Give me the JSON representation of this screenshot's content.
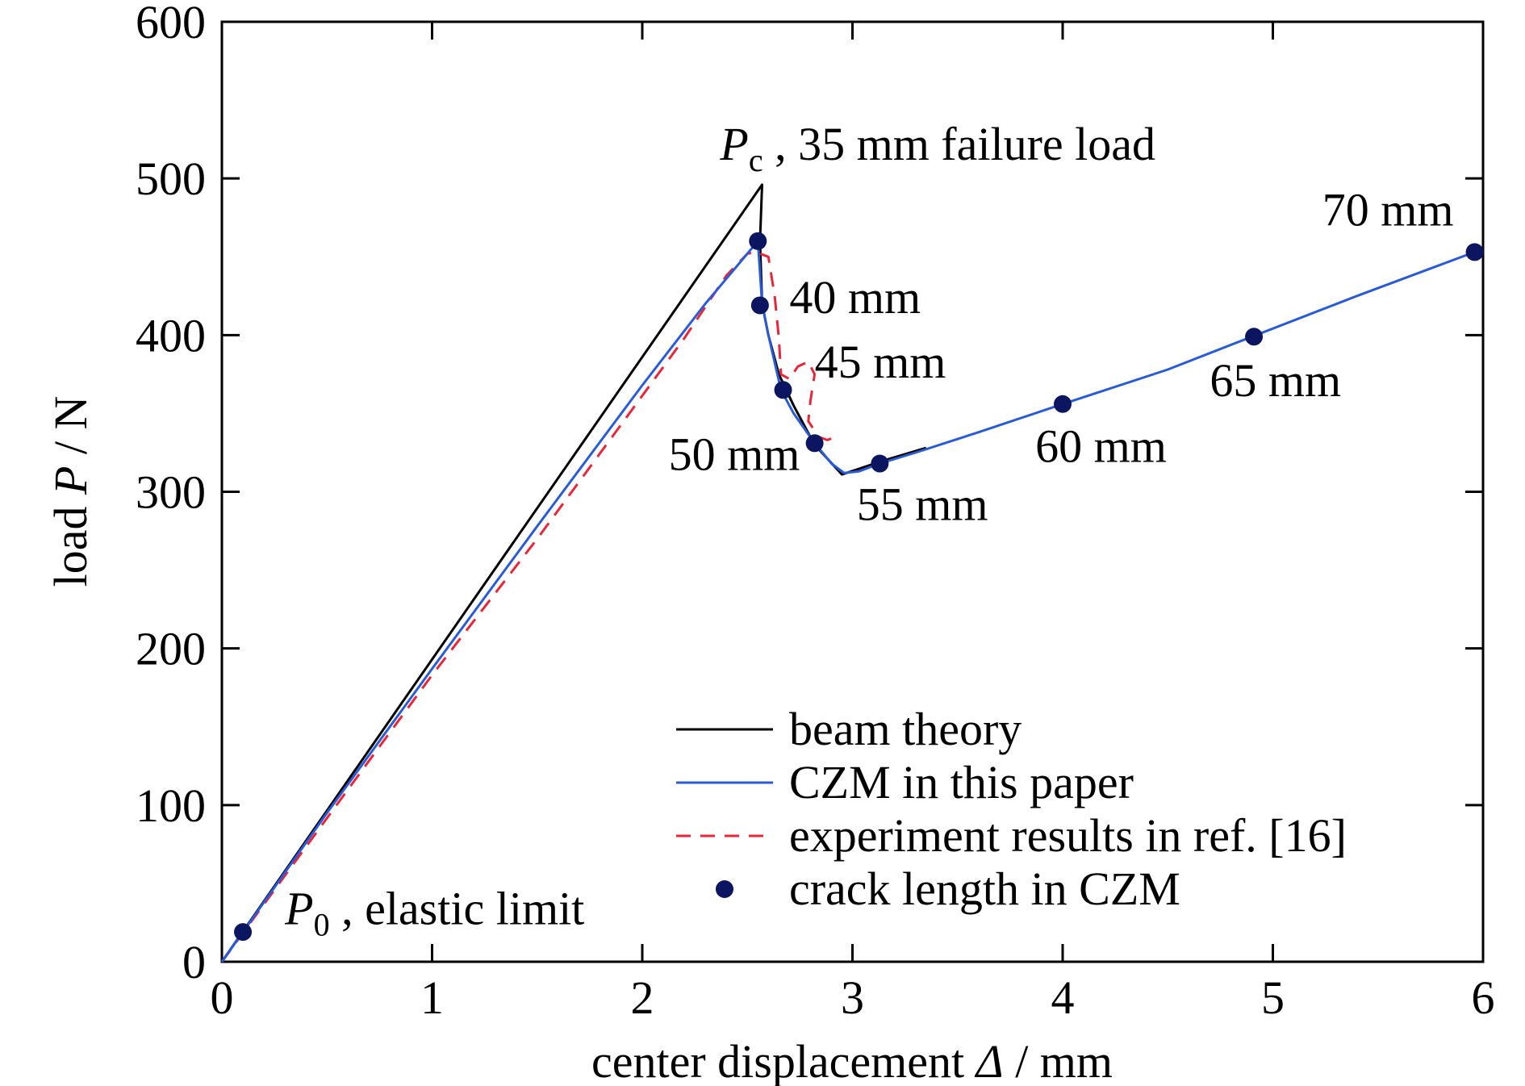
{
  "chart_data": {
    "type": "line",
    "xlabel_pre": "center displacement ",
    "xlabel_sym": "Δ",
    "xlabel_post": " / mm",
    "ylabel_pre": "load ",
    "ylabel_sym": "P",
    "ylabel_post": " / N",
    "xlim": [
      0,
      6
    ],
    "ylim": [
      0,
      600
    ],
    "xticks": [
      0,
      1,
      2,
      3,
      4,
      5,
      6
    ],
    "yticks": [
      0,
      100,
      200,
      300,
      400,
      500,
      600
    ],
    "grid": false,
    "legend_position": "lower-right",
    "series": [
      {
        "name": "beam theory",
        "color": "#000000",
        "style": "solid",
        "points": [
          [
            0,
            0
          ],
          [
            2.57,
            496
          ],
          [
            2.56,
            460
          ],
          [
            2.57,
            420
          ],
          [
            2.6,
            400
          ],
          [
            2.65,
            375
          ],
          [
            2.72,
            355
          ],
          [
            2.82,
            330
          ],
          [
            2.95,
            311
          ],
          [
            3.15,
            320
          ],
          [
            3.35,
            328
          ]
        ]
      },
      {
        "name": "CZM in this paper",
        "color": "#2a5bd7",
        "style": "solid",
        "points": [
          [
            0,
            0
          ],
          [
            0.1,
            19
          ],
          [
            0.5,
            95
          ],
          [
            1.0,
            187
          ],
          [
            1.5,
            278
          ],
          [
            2.0,
            368
          ],
          [
            2.3,
            420
          ],
          [
            2.55,
            460
          ],
          [
            2.56,
            440
          ],
          [
            2.57,
            420
          ],
          [
            2.6,
            400
          ],
          [
            2.66,
            365
          ],
          [
            2.72,
            350
          ],
          [
            2.82,
            331
          ],
          [
            2.9,
            318
          ],
          [
            2.96,
            312
          ],
          [
            3.03,
            313
          ],
          [
            3.13,
            318
          ],
          [
            3.3,
            325
          ],
          [
            3.6,
            338
          ],
          [
            4.0,
            356
          ],
          [
            4.5,
            378
          ],
          [
            4.9,
            399
          ],
          [
            5.4,
            425
          ],
          [
            5.96,
            453
          ]
        ]
      },
      {
        "name": "experiment results in ref. [16]",
        "color": "#e8263a",
        "style": "dashed",
        "points": [
          [
            0,
            0
          ],
          [
            0.3,
            55
          ],
          [
            0.6,
            110
          ],
          [
            1.0,
            183
          ],
          [
            1.5,
            270
          ],
          [
            1.9,
            343
          ],
          [
            2.2,
            398
          ],
          [
            2.4,
            438
          ],
          [
            2.5,
            452
          ],
          [
            2.54,
            453
          ],
          [
            2.6,
            450
          ],
          [
            2.63,
            425
          ],
          [
            2.65,
            398
          ],
          [
            2.66,
            375
          ],
          [
            2.7,
            372
          ],
          [
            2.74,
            380
          ],
          [
            2.79,
            383
          ],
          [
            2.82,
            375
          ],
          [
            2.8,
            358
          ],
          [
            2.79,
            345
          ],
          [
            2.84,
            335
          ],
          [
            2.88,
            333
          ],
          [
            2.94,
            336
          ]
        ]
      }
    ],
    "markers": {
      "name": "crack length in CZM",
      "color": "#0b1560",
      "points": [
        [
          0.1,
          19
        ],
        [
          2.55,
          460
        ],
        [
          2.56,
          419
        ],
        [
          2.67,
          365
        ],
        [
          2.82,
          331
        ],
        [
          3.13,
          318
        ],
        [
          4.0,
          356
        ],
        [
          4.91,
          399
        ],
        [
          5.96,
          453
        ]
      ]
    },
    "annotations": [
      {
        "sym": "P",
        "sub": "0",
        "text": ", elastic limit",
        "x": 0.3,
        "y": 24,
        "anchor": "start"
      },
      {
        "sym": "P",
        "sub": "c",
        "text": ", 35 mm failure load",
        "x": 2.37,
        "y": 512,
        "anchor": "start"
      },
      {
        "text": "40 mm",
        "x": 2.7,
        "y": 414,
        "anchor": "start"
      },
      {
        "text": "45 mm",
        "x": 2.82,
        "y": 373,
        "anchor": "start"
      },
      {
        "text": "50 mm",
        "x": 2.75,
        "y": 314,
        "anchor": "end"
      },
      {
        "text": "55 mm",
        "x": 3.02,
        "y": 282,
        "anchor": "start"
      },
      {
        "text": "60 mm",
        "x": 3.87,
        "y": 319,
        "anchor": "start"
      },
      {
        "text": "65 mm",
        "x": 4.7,
        "y": 361,
        "anchor": "start"
      },
      {
        "text": "70 mm",
        "x": 5.86,
        "y": 470,
        "anchor": "end"
      }
    ]
  }
}
